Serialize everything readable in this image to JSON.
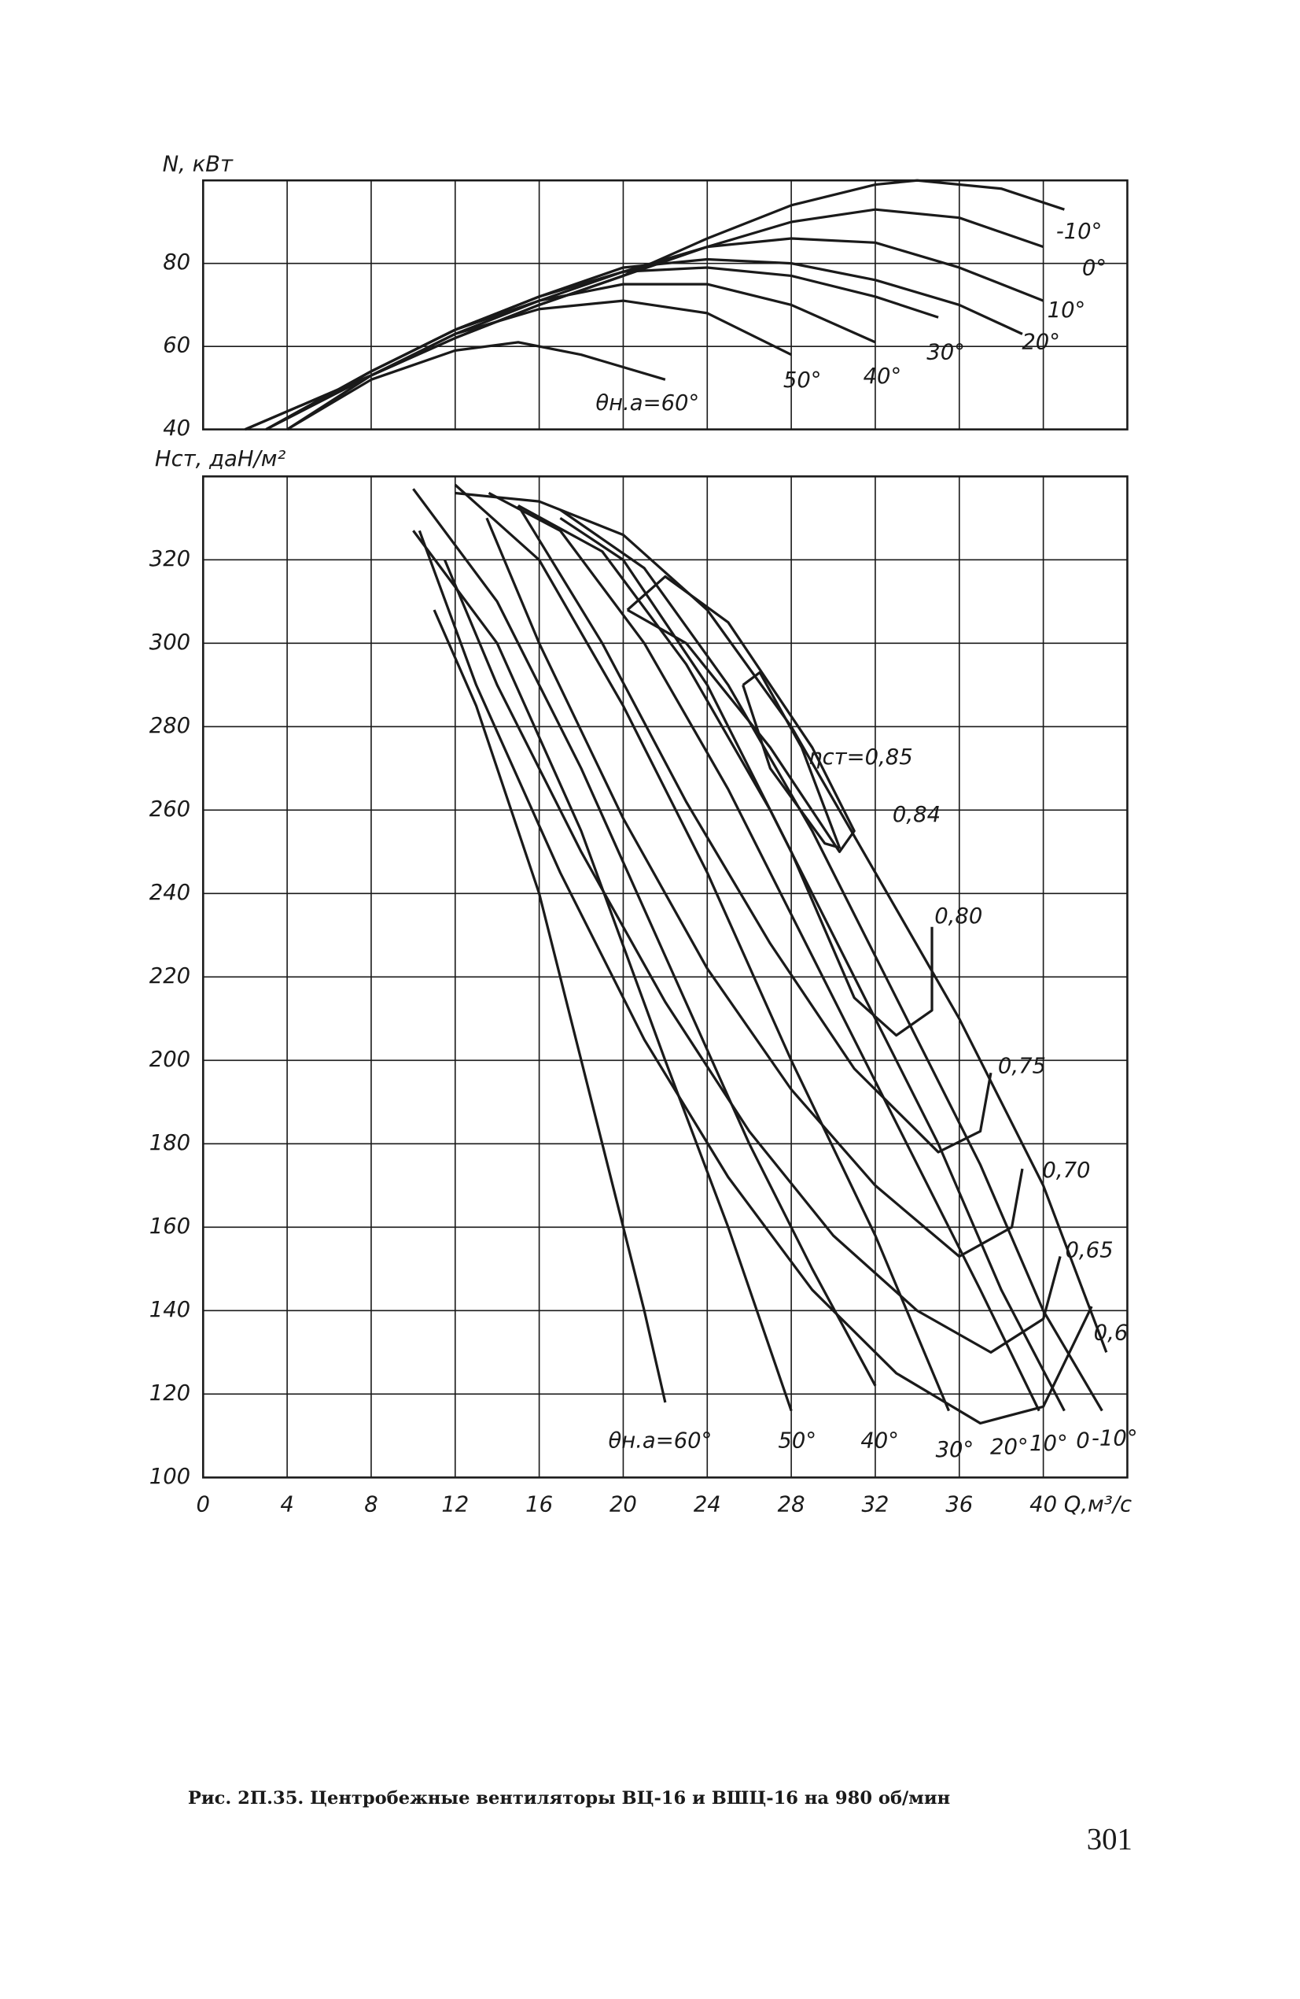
{
  "chart_data": [
    {
      "type": "line",
      "y_label": "N, кВт",
      "xlim": [
        0,
        44
      ],
      "ylim": [
        40,
        100
      ],
      "yticks": [
        40,
        60,
        80
      ],
      "grid": true,
      "series": [
        {
          "name": "-10°",
          "color": "#1a1a1a",
          "x": [
            2,
            8,
            12,
            16,
            20,
            24,
            28,
            32,
            34,
            38,
            41
          ],
          "values": [
            40,
            53,
            62,
            70,
            77,
            86,
            94,
            99,
            100,
            98,
            93
          ]
        },
        {
          "name": "0°",
          "color": "#1a1a1a",
          "x": [
            2,
            8,
            12,
            16,
            20,
            24,
            28,
            32,
            36,
            40
          ],
          "values": [
            40,
            53,
            62,
            70,
            77,
            84,
            90,
            93,
            91,
            84
          ]
        },
        {
          "name": "10°",
          "color": "#1a1a1a",
          "x": [
            3,
            8,
            12,
            16,
            20,
            24,
            28,
            32,
            36,
            40
          ],
          "values": [
            40,
            53,
            63,
            71,
            78,
            84,
            86,
            85,
            79,
            71
          ]
        },
        {
          "name": "20°",
          "color": "#1a1a1a",
          "x": [
            3,
            8,
            12,
            16,
            20,
            24,
            28,
            32,
            36,
            39
          ],
          "values": [
            40,
            54,
            64,
            72,
            79,
            81,
            80,
            76,
            70,
            63
          ]
        },
        {
          "name": "30°",
          "color": "#1a1a1a",
          "x": [
            3,
            8,
            12,
            16,
            20,
            24,
            28,
            32,
            35
          ],
          "values": [
            40,
            54,
            64,
            72,
            78,
            79,
            77,
            72,
            67
          ]
        },
        {
          "name": "40°",
          "color": "#1a1a1a",
          "x": [
            3,
            8,
            12,
            16,
            20,
            24,
            28,
            32
          ],
          "values": [
            40,
            54,
            64,
            71,
            75,
            75,
            70,
            61
          ]
        },
        {
          "name": "50°",
          "color": "#1a1a1a",
          "x": [
            4,
            8,
            12,
            16,
            20,
            24,
            28
          ],
          "values": [
            40,
            53,
            63,
            69,
            71,
            68,
            58
          ]
        },
        {
          "name": "θн.а=60°",
          "color": "#1a1a1a",
          "x": [
            4,
            8,
            12,
            15,
            18,
            22
          ],
          "values": [
            40,
            52,
            59,
            61,
            58,
            52
          ]
        }
      ]
    },
    {
      "type": "line",
      "y_label": "Hст, даН/м²",
      "x_label": "Q,м³/с",
      "xlim": [
        0,
        44
      ],
      "ylim": [
        100,
        340
      ],
      "xticks": [
        0,
        4,
        8,
        12,
        16,
        20,
        24,
        28,
        32,
        36,
        40
      ],
      "yticks": [
        100,
        120,
        140,
        160,
        180,
        200,
        220,
        240,
        260,
        280,
        300,
        320
      ],
      "grid": true,
      "series": [
        {
          "name": "-10°",
          "color": "#1a1a1a",
          "x": [
            12,
            16,
            20,
            24,
            28,
            32,
            36,
            40,
            43
          ],
          "values": [
            336,
            334,
            326,
            308,
            280,
            245,
            210,
            170,
            130
          ]
        },
        {
          "name": "0",
          "color": "#1a1a1a",
          "x": [
            17,
            21,
            25,
            29,
            33,
            37,
            40,
            42.8
          ],
          "values": [
            332,
            318,
            290,
            255,
            215,
            175,
            140,
            116
          ]
        },
        {
          "name": "10°",
          "color": "#1a1a1a",
          "x": [
            15,
            19,
            23,
            27,
            31,
            35,
            38,
            41
          ],
          "values": [
            333,
            322,
            295,
            260,
            220,
            180,
            145,
            116
          ]
        },
        {
          "name": "20°",
          "color": "#1a1a1a",
          "x": [
            13.6,
            17,
            21,
            25,
            29,
            33,
            37,
            39.8
          ],
          "values": [
            336,
            327,
            300,
            265,
            225,
            185,
            145,
            116
          ]
        },
        {
          "name": "30°",
          "color": "#1a1a1a",
          "x": [
            12,
            16,
            20,
            24,
            28,
            32,
            35.5
          ],
          "values": [
            338,
            320,
            285,
            245,
            200,
            158,
            116
          ]
        },
        {
          "name": "40°",
          "color": "#1a1a1a",
          "x": [
            10,
            14,
            18,
            22,
            26,
            29,
            32
          ],
          "values": [
            337,
            310,
            270,
            225,
            180,
            150,
            122
          ]
        },
        {
          "name": "50°",
          "color": "#1a1a1a",
          "x": [
            10,
            14,
            18,
            22,
            25,
            28
          ],
          "values": [
            327,
            300,
            255,
            200,
            160,
            116
          ]
        },
        {
          "name": "θн.а=60°",
          "color": "#1a1a1a",
          "x": [
            11,
            13,
            16,
            19,
            21,
            22
          ],
          "values": [
            308,
            285,
            240,
            180,
            140,
            118
          ]
        },
        {
          "name": "ηст=0,85",
          "color": "#1a1a1a",
          "x": [
            25.7,
            26.5,
            28.5,
            30.3,
            29.6,
            27,
            25.7
          ],
          "values": [
            290,
            293,
            275,
            251,
            252,
            270,
            290
          ]
        },
        {
          "name": "0,84",
          "color": "#1a1a1a",
          "x": [
            20.2,
            22,
            25,
            29,
            31,
            30.3,
            27,
            23,
            20.2
          ],
          "values": [
            308,
            316,
            305,
            275,
            255,
            250,
            275,
            300,
            308
          ]
        },
        {
          "name": "0,80",
          "color": "#1a1a1a",
          "x": [
            17,
            20,
            24,
            28,
            31,
            33,
            34.7,
            34.7
          ],
          "values": [
            330,
            320,
            290,
            250,
            215,
            206,
            212,
            232
          ]
        },
        {
          "name": "0,75",
          "color": "#1a1a1a",
          "x": [
            15,
            19,
            23,
            27,
            31,
            35,
            37,
            37.5
          ],
          "values": [
            333,
            300,
            262,
            228,
            198,
            178,
            183,
            197
          ]
        },
        {
          "name": "0,70",
          "color": "#1a1a1a",
          "x": [
            13.5,
            16,
            20,
            24,
            28,
            32,
            36,
            38.5,
            39
          ],
          "values": [
            330,
            300,
            258,
            222,
            193,
            170,
            153,
            160,
            174
          ]
        },
        {
          "name": "0,65",
          "color": "#1a1a1a",
          "x": [
            11.5,
            14,
            18,
            22,
            26,
            30,
            34,
            37.5,
            40,
            40.8
          ],
          "values": [
            320,
            290,
            250,
            214,
            183,
            158,
            140,
            130,
            138,
            153
          ]
        },
        {
          "name": "0,6",
          "color": "#1a1a1a",
          "x": [
            10.3,
            13,
            17,
            21,
            25,
            29,
            33,
            37,
            40,
            42.3
          ],
          "values": [
            327,
            290,
            245,
            205,
            172,
            145,
            125,
            113,
            117,
            141
          ]
        }
      ]
    }
  ],
  "caption": "Рис. 2П.35. Центробежные вентиляторы ВЦ-16 и ВШЦ-16 на 980 об/мин",
  "page_number": "301"
}
